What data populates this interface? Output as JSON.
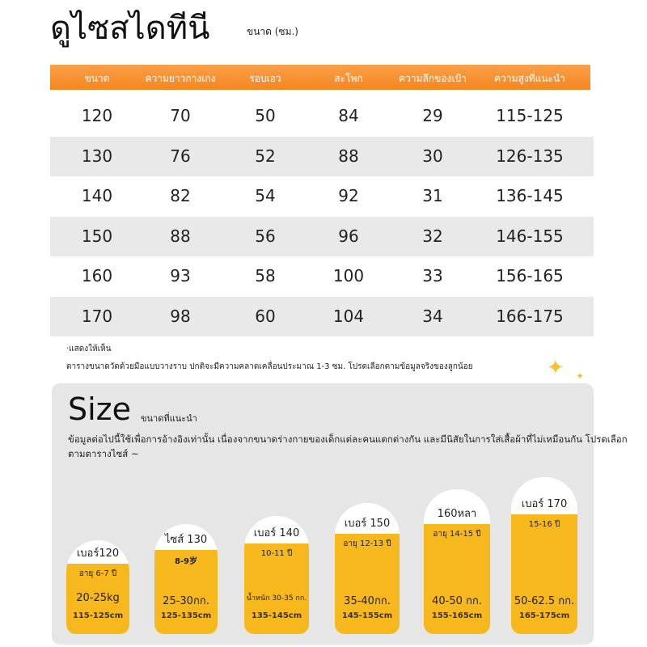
{
  "header": {
    "title": "ดูไซสไดทีนี",
    "subtitle": "ขนาด (ซม.)"
  },
  "table": {
    "columns": [
      "ขนาด",
      "ความยาวกางเกง",
      "รอบเอว",
      "สะโพก",
      "ความลึกของเป้า",
      "ความสูงที่แนะนำ"
    ],
    "rows": [
      [
        "120",
        "70",
        "50",
        "84",
        "29",
        "115-125"
      ],
      [
        "130",
        "76",
        "52",
        "88",
        "30",
        "126-135"
      ],
      [
        "140",
        "82",
        "54",
        "92",
        "31",
        "136-145"
      ],
      [
        "150",
        "88",
        "56",
        "96",
        "32",
        "146-155"
      ],
      [
        "160",
        "93",
        "58",
        "100",
        "33",
        "156-165"
      ],
      [
        "170",
        "98",
        "60",
        "104",
        "34",
        "166-175"
      ]
    ]
  },
  "notes": [
    "·แสดงให้เห็น",
    "ตารางขนาดวัดด้วยมือแบบวางราบ ปกติจะมีความคลาดเคลื่อนประมาณ 1-3 ซม. โปรดเลือกตามข้อมูลจริงของลูกน้อย"
  ],
  "size_section": {
    "title": "Size",
    "subtitle": "ขนาดที่แนะนำ",
    "description": "ข้อมูลต่อไปนี้ใช้เพื่อการอ้างอิงเท่านั้น เนื่องจากขนาดร่างกายของเด็กแต่ละคนแตกต่างกัน และมีนิสัยในการใส่เสื้อผ้าที่ไม่เหมือนกัน โปรดเลือกตามตารางไซส์ ~",
    "sizes": [
      {
        "label": "เบอร์120",
        "age": "อายุ 6-7 ปี",
        "weight": "20-25kg",
        "height": "115-125cm"
      },
      {
        "label": "ไซส์ 130",
        "age": "8-9岁",
        "weight": "25-30กก.",
        "height": "125-135cm"
      },
      {
        "label": "เบอร์ 140",
        "age": "10-11 ปี",
        "weight": "น้ำหนัก 30-35 กก.",
        "height": "135-145cm"
      },
      {
        "label": "เบอร์ 150",
        "age": "อายุ 12-13 ปี",
        "weight": "35-40กก.",
        "height": "145-155cm"
      },
      {
        "label": "160หลา",
        "age": "อายุ 14-15 ปี",
        "weight": "40-50 กก.",
        "height": "155-165cm"
      },
      {
        "label": "เบอร์ 170",
        "age": "15-16 ปี",
        "weight": "50-62.5 กก.",
        "height": "165-175cm"
      }
    ]
  }
}
